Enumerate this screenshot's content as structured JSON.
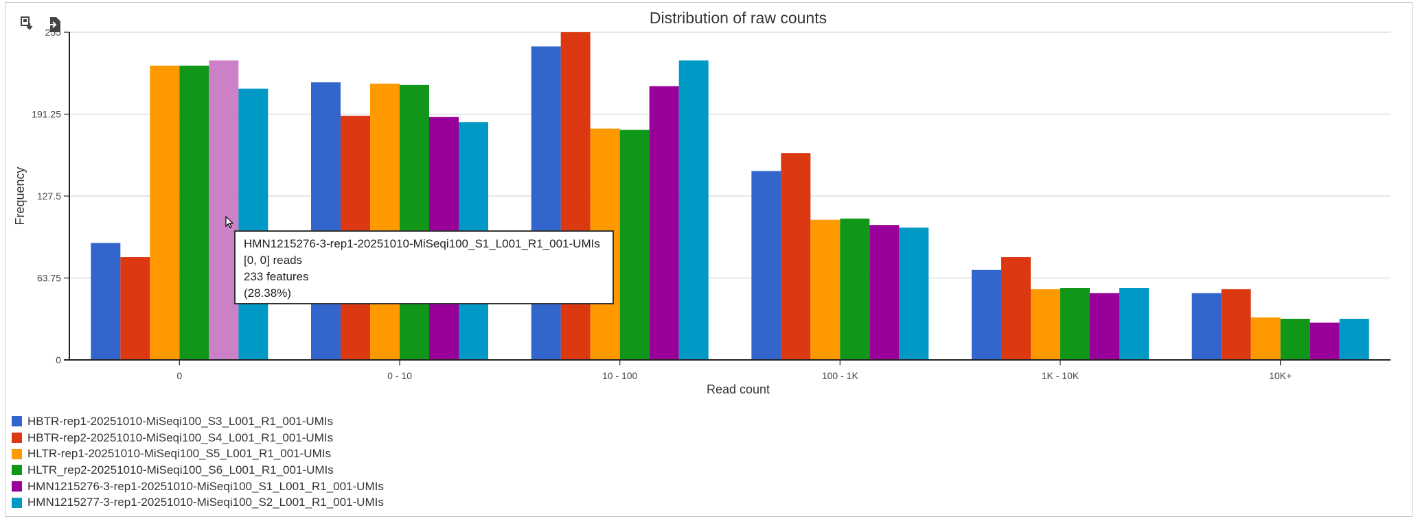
{
  "chart_data": {
    "type": "bar",
    "title": "Distribution of raw counts",
    "xlabel": "Read count",
    "ylabel": "Frequency",
    "ylim": [
      0,
      255
    ],
    "yticks": [
      "0",
      "63.75",
      "127.5",
      "191.25",
      "255"
    ],
    "grid": true,
    "legend_position": "bottom-left",
    "categories": [
      "0",
      "0 - 10",
      "10 - 100",
      "100 - 1K",
      "1K - 10K",
      "10K+"
    ],
    "series": [
      {
        "name": "HBTR-rep1-20251010-MiSeqi100_S3_L001_R1_001-UMIs",
        "color": "#3366cc",
        "values": [
          91,
          216,
          244,
          147,
          70,
          52
        ]
      },
      {
        "name": "HBTR-rep2-20251010-MiSeqi100_S4_L001_R1_001-UMIs",
        "color": "#dc3912",
        "values": [
          80,
          190,
          255,
          161,
          80,
          55
        ]
      },
      {
        "name": "HLTR-rep1-20251010-MiSeqi100_S5_L001_R1_001-UMIs",
        "color": "#ff9900",
        "values": [
          229,
          215,
          180,
          109,
          55,
          33
        ]
      },
      {
        "name": "HLTR_rep2-20251010-MiSeqi100_S6_L001_R1_001-UMIs",
        "color": "#109618",
        "values": [
          229,
          214,
          179,
          110,
          56,
          32
        ]
      },
      {
        "name": "HMN1215276-3-rep1-20251010-MiSeqi100_S1_L001_R1_001-UMIs",
        "color": "#990099",
        "values": [
          233,
          189,
          213,
          105,
          52,
          29
        ]
      },
      {
        "name": "HMN1215277-3-rep1-20251010-MiSeqi100_S2_L001_R1_001-UMIs",
        "color": "#0099c6",
        "values": [
          211,
          185,
          233,
          103,
          56,
          32
        ]
      }
    ],
    "highlight": {
      "series": 4,
      "category": 0,
      "color": "#cc80c8"
    }
  },
  "tooltip": {
    "series": "HMN1215276-3-rep1-20251010-MiSeqi100_S1_L001_R1_001-UMIs",
    "range": "[0, 0] reads",
    "features": "233 features",
    "percent": "(28.38%)"
  },
  "toolbar": {
    "icons": [
      "image-download-icon",
      "export-file-icon"
    ]
  }
}
